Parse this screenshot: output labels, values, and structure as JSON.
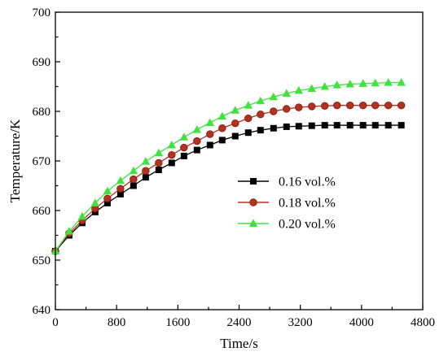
{
  "chart_data": {
    "type": "line",
    "xlabel": "Time/s",
    "ylabel": "Temperature/K",
    "xlim": [
      0,
      4800
    ],
    "ylim": [
      640,
      700
    ],
    "xticks": [
      0,
      800,
      1600,
      2400,
      3200,
      4000,
      4800
    ],
    "yticks": [
      640,
      650,
      660,
      670,
      680,
      690,
      700
    ],
    "legend_position": "center-right",
    "x": [
      0,
      180,
      350,
      520,
      680,
      850,
      1020,
      1180,
      1350,
      1520,
      1680,
      1850,
      2020,
      2180,
      2350,
      2520,
      2680,
      2850,
      3020,
      3180,
      3350,
      3520,
      3680,
      3850,
      4020,
      4180,
      4350,
      4520
    ],
    "series": [
      {
        "name": "0.16 vol.%",
        "color": "#000000",
        "marker": "square",
        "values": [
          651.8,
          655.0,
          657.5,
          659.7,
          661.5,
          663.3,
          665.0,
          666.7,
          668.2,
          669.6,
          671.0,
          672.2,
          673.2,
          674.2,
          675.0,
          675.7,
          676.2,
          676.6,
          676.9,
          677.0,
          677.1,
          677.2,
          677.2,
          677.2,
          677.2,
          677.2,
          677.2,
          677.2
        ]
      },
      {
        "name": "0.18 vol.%",
        "color": "#b5311f",
        "marker": "circle",
        "values": [
          651.8,
          655.4,
          658.0,
          660.4,
          662.4,
          664.4,
          666.3,
          668.0,
          669.6,
          671.2,
          672.7,
          674.0,
          675.4,
          676.6,
          677.6,
          678.6,
          679.4,
          680.0,
          680.5,
          680.8,
          681.0,
          681.1,
          681.2,
          681.2,
          681.2,
          681.2,
          681.2,
          681.2
        ]
      },
      {
        "name": "0.20 vol.%",
        "color": "#3fe23f",
        "marker": "triangle",
        "values": [
          651.8,
          655.8,
          658.8,
          661.5,
          663.9,
          666.0,
          668.0,
          669.9,
          671.6,
          673.2,
          674.8,
          676.3,
          677.7,
          679.0,
          680.2,
          681.2,
          682.1,
          682.9,
          683.6,
          684.2,
          684.6,
          685.0,
          685.3,
          685.5,
          685.6,
          685.7,
          685.8,
          685.8
        ]
      }
    ]
  }
}
